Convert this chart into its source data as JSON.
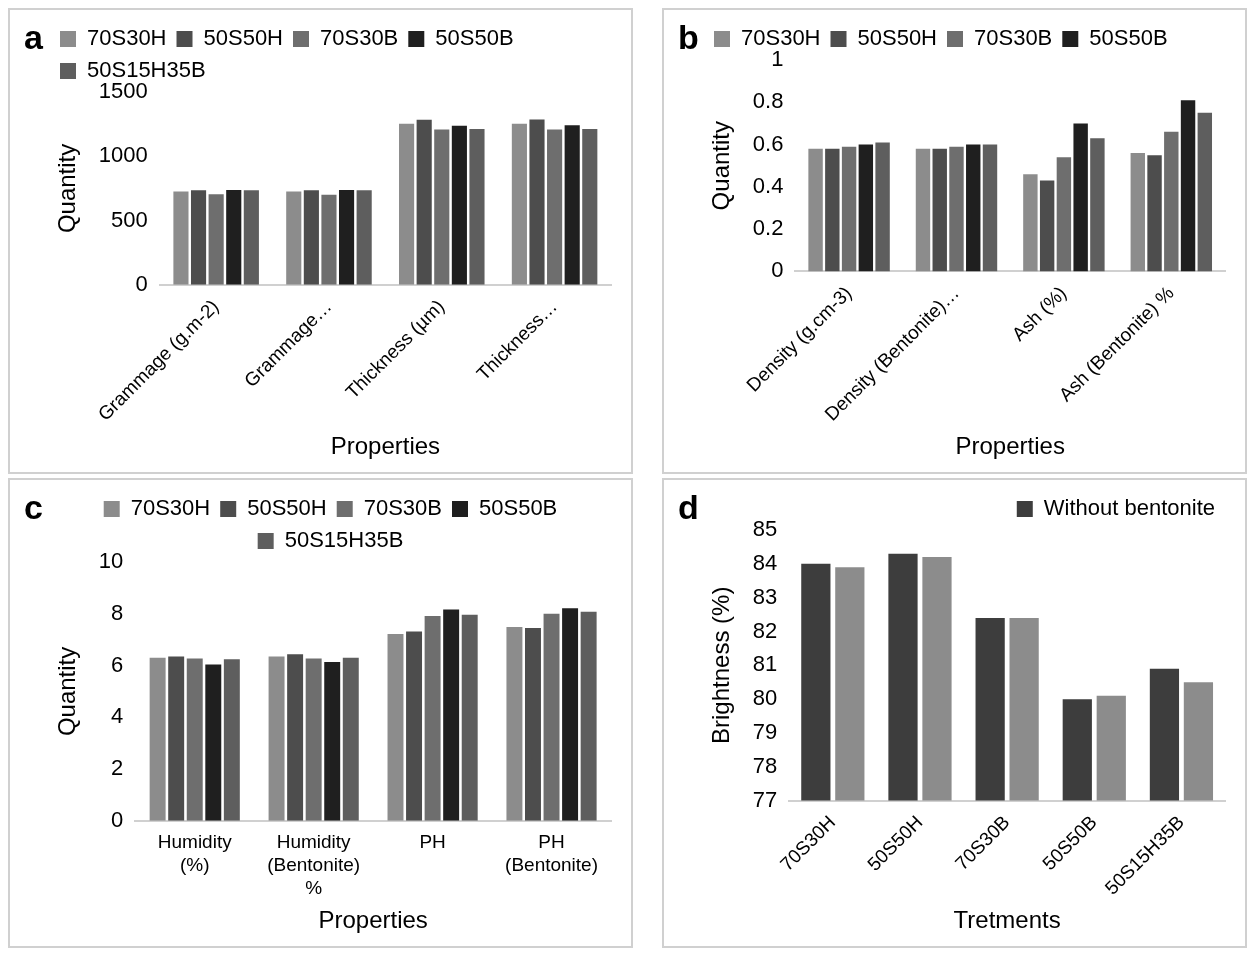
{
  "chart_data": [
    {
      "type": "bar",
      "title": "a",
      "xlabel": "Properties",
      "ylabel": "Quantity",
      "categories": [
        "Grammage (g.m-2)",
        "Grammage…",
        "Thickness (µm)",
        "Thickness…"
      ],
      "ylim": [
        0,
        1500
      ],
      "yticks": [
        0,
        500,
        1000,
        1500
      ],
      "grid": false,
      "legend": "top left",
      "series": [
        {
          "name": "70S30H",
          "color": "#8c8c8c",
          "values": [
            726,
            726,
            1254,
            1254
          ]
        },
        {
          "name": "50S50H",
          "color": "#4d4d4d",
          "values": [
            736,
            736,
            1285,
            1287
          ]
        },
        {
          "name": "70S30B",
          "color": "#6e6e6e",
          "values": [
            705,
            700,
            1208,
            1208
          ]
        },
        {
          "name": "50S50B",
          "color": "#1f1f1f",
          "values": [
            738,
            738,
            1238,
            1241
          ]
        },
        {
          "name": "50S15H35B",
          "color": "#5e5e5e",
          "values": [
            736,
            736,
            1213,
            1213
          ]
        }
      ]
    },
    {
      "type": "bar",
      "title": "b",
      "xlabel": "Properties",
      "ylabel": "Quantity",
      "categories": [
        "Density (g.cm-3)",
        "Density (Bentonite)…",
        "Ash (%)",
        "Ash (Bentonite) %"
      ],
      "ylim": [
        0,
        1
      ],
      "yticks": [
        0,
        0.2,
        0.4,
        0.6,
        0.8,
        1
      ],
      "grid": false,
      "legend": "top left",
      "series": [
        {
          "name": "70S30H",
          "color": "#8c8c8c",
          "values": [
            0.58,
            0.58,
            0.46,
            0.56
          ]
        },
        {
          "name": "50S50H",
          "color": "#4d4d4d",
          "values": [
            0.58,
            0.58,
            0.43,
            0.55
          ]
        },
        {
          "name": "70S30B",
          "color": "#6e6e6e",
          "values": [
            0.59,
            0.59,
            0.54,
            0.66
          ]
        },
        {
          "name": "50S50B",
          "color": "#1f1f1f",
          "values": [
            0.6,
            0.6,
            0.7,
            0.81
          ]
        },
        {
          "color": "#5e5e5e",
          "values": [
            0.61,
            0.6,
            0.63,
            0.75
          ]
        }
      ]
    },
    {
      "type": "bar",
      "title": "c",
      "xlabel": "Properties",
      "ylabel": "Quantity",
      "categories": [
        "Humidity (%)",
        "Humidity (Bentonite) %",
        "PH",
        "PH (Bentonite)"
      ],
      "ylim": [
        0,
        10
      ],
      "yticks": [
        0,
        2,
        4,
        6,
        8,
        10
      ],
      "grid": false,
      "legend": "top",
      "series": [
        {
          "name": "70S30H",
          "color": "#8c8c8c",
          "values": [
            6.3,
            6.35,
            7.22,
            7.49
          ]
        },
        {
          "name": "50S50H",
          "color": "#4d4d4d",
          "values": [
            6.35,
            6.44,
            7.31,
            7.45
          ]
        },
        {
          "name": "70S30B",
          "color": "#6e6e6e",
          "values": [
            6.27,
            6.27,
            7.91,
            8.0
          ]
        },
        {
          "name": "50S50B",
          "color": "#1f1f1f",
          "values": [
            6.04,
            6.14,
            8.16,
            8.21
          ]
        },
        {
          "name": "50S15H35B",
          "color": "#5e5e5e",
          "values": [
            6.24,
            6.3,
            7.96,
            8.08
          ]
        }
      ]
    },
    {
      "type": "bar",
      "title": "d",
      "xlabel": "Tretments",
      "ylabel": "Brightness (%)",
      "categories": [
        "70S30H",
        "50S50H",
        "70S30B",
        "50S50B",
        "50S15H35B"
      ],
      "ylim": [
        77,
        85
      ],
      "yticks": [
        77,
        78,
        79,
        80,
        81,
        82,
        83,
        84,
        85
      ],
      "grid": false,
      "legend": "top right",
      "series": [
        {
          "name": "Without bentonite",
          "color": "#3d3d3d",
          "values": [
            84.0,
            84.3,
            82.4,
            80.0,
            80.9
          ]
        },
        {
          "color": "#8c8c8c",
          "values": [
            83.9,
            84.2,
            82.4,
            80.1,
            80.5
          ]
        }
      ]
    }
  ]
}
